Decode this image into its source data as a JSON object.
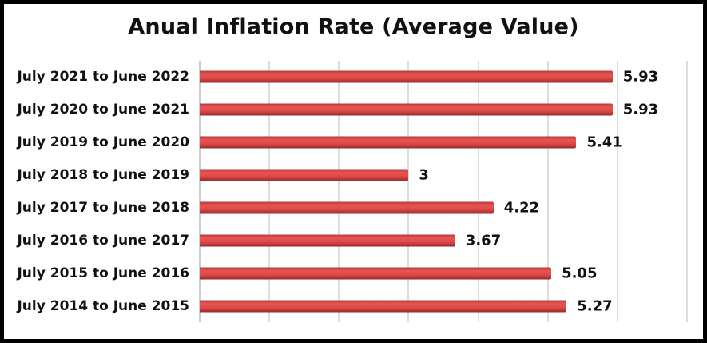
{
  "chart_data": {
    "type": "bar",
    "orientation": "horizontal",
    "title": "Anual Inflation Rate (Average Value)",
    "categories": [
      "July 2021 to June 2022",
      "July 2020 to June 2021",
      "July 2019 to June 2020",
      "July 2018 to June 2019",
      "July 2017 to June 2018",
      "July 2016 to June 2017",
      "July 2015 to June 2016",
      "July 2014 to June 2015"
    ],
    "values": [
      5.93,
      5.93,
      5.41,
      3,
      4.22,
      3.67,
      5.05,
      5.27
    ],
    "value_labels": [
      "5.93",
      "5.93",
      "5.41",
      "3",
      "4.22",
      "3.67",
      "5.05",
      "5.27"
    ],
    "xlabel": "",
    "ylabel": "",
    "xlim": [
      0,
      7
    ],
    "gridline_step": 1,
    "grid": true,
    "legend": false,
    "colors": {
      "bar": "#e04a4a",
      "bar_gradient_top": "#b83a3a",
      "bar_gradient_bottom": "#8f2d2d",
      "grid": "#dddddd",
      "axis": "#cccccc",
      "text": "#111111",
      "frame": "#000000",
      "background": "#ffffff"
    }
  }
}
